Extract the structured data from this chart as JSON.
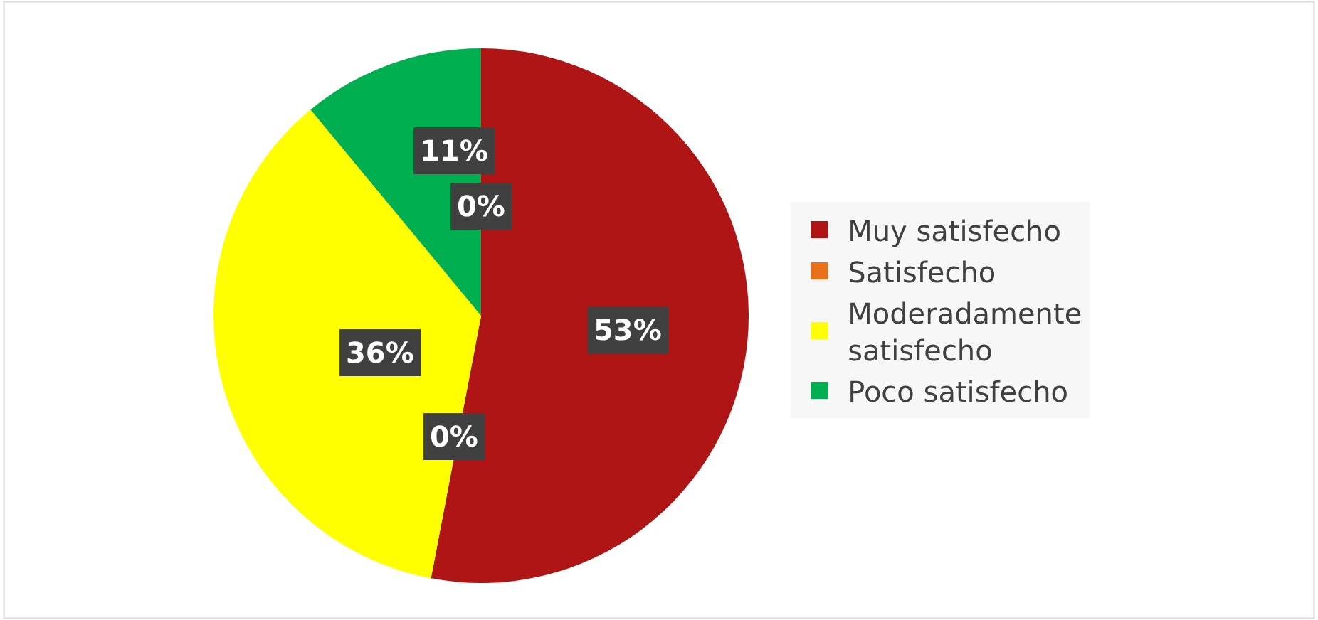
{
  "chart_data": {
    "type": "pie",
    "categories": [
      "Muy satisfecho",
      "Satisfecho",
      "Moderadamente satisfecho",
      "Poco satisfecho",
      null
    ],
    "values": [
      53,
      0,
      36,
      11,
      0
    ],
    "colors": [
      "#b01515",
      "#e8711a",
      "#ffff00",
      "#00b050",
      "#7f7f7f"
    ],
    "value_labels": [
      "53%",
      "0%",
      "36%",
      "11%",
      "0%"
    ],
    "legend": "right"
  }
}
